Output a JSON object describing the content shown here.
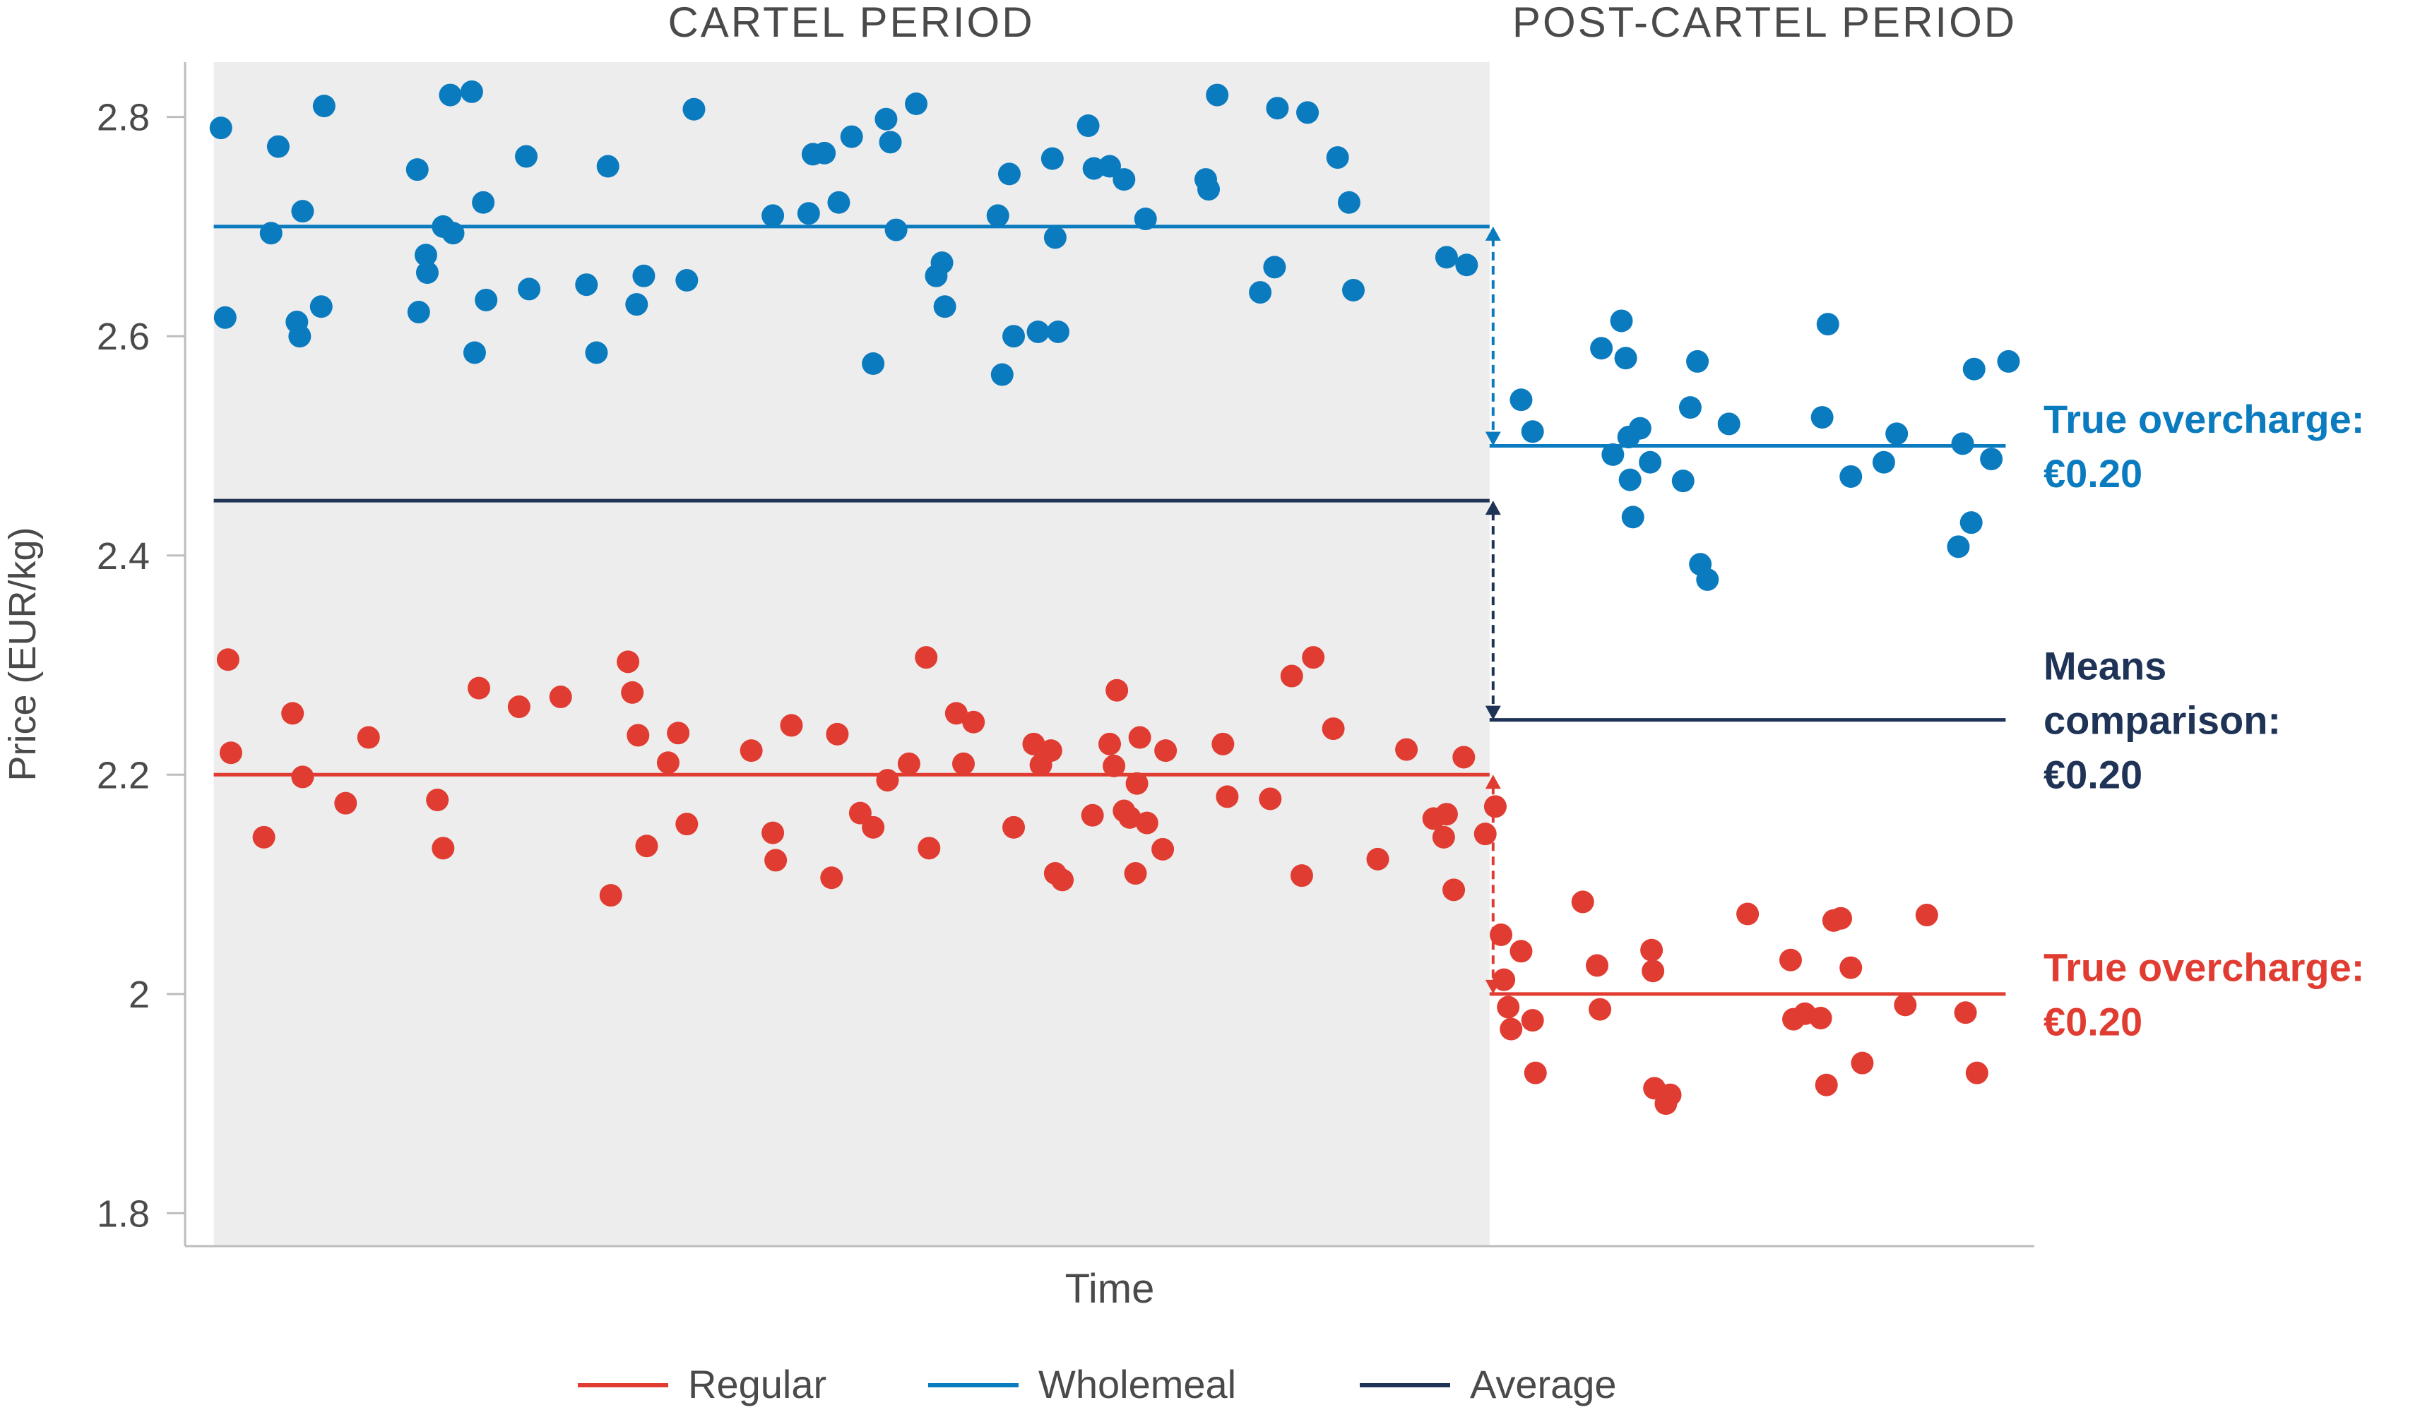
{
  "chart_data": {
    "type": "scatter",
    "title": "",
    "xlabel": "Time",
    "ylabel": "Price (EUR/kg)",
    "ylim": [
      1.77,
      2.85
    ],
    "xlim": [
      0,
      129
    ],
    "y_ticks": [
      1.8,
      2,
      2.2,
      2.4,
      2.6,
      2.8
    ],
    "y_tick_labels": [
      "1.8",
      "2",
      "2.2",
      "2.4",
      "2.6",
      "2.8"
    ],
    "grid": false,
    "legend_position": "bottom",
    "periods": [
      {
        "label": "CARTEL PERIOD",
        "x_start": 2,
        "x_end": 91,
        "shaded": true
      },
      {
        "label": "POST-CARTEL PERIOD",
        "x_start": 91,
        "x_end": 129,
        "shaded": false
      }
    ],
    "colors": {
      "regular": "#E03C31",
      "wholemeal": "#0B7BBF",
      "average": "#1F3356",
      "shade": "#EDEDED",
      "axis": "#BDBDBD",
      "text": "#4A4A4A"
    },
    "series": [
      {
        "name": "Wholemeal",
        "color": "#0B7BBF",
        "points": [
          [
            2.5,
            2.79
          ],
          [
            2.8,
            2.617
          ],
          [
            6,
            2.694
          ],
          [
            6.5,
            2.773
          ],
          [
            7.8,
            2.613
          ],
          [
            8,
            2.6
          ],
          [
            8.2,
            2.714
          ],
          [
            9.5,
            2.627
          ],
          [
            9.7,
            2.81
          ],
          [
            16.2,
            2.752
          ],
          [
            16.3,
            2.622
          ],
          [
            16.8,
            2.674
          ],
          [
            16.9,
            2.658
          ],
          [
            18,
            2.7
          ],
          [
            18.5,
            2.82
          ],
          [
            18.7,
            2.694
          ],
          [
            20,
            2.823
          ],
          [
            20.2,
            2.585
          ],
          [
            20.8,
            2.722
          ],
          [
            21,
            2.633
          ],
          [
            23.8,
            2.764
          ],
          [
            24,
            2.643
          ],
          [
            28,
            2.647
          ],
          [
            28.7,
            2.585
          ],
          [
            29.5,
            2.755
          ],
          [
            31.5,
            2.629
          ],
          [
            32,
            2.655
          ],
          [
            35,
            2.651
          ],
          [
            35.5,
            2.807
          ],
          [
            41,
            2.71
          ],
          [
            43.5,
            2.712
          ],
          [
            43.8,
            2.766
          ],
          [
            44.6,
            2.767
          ],
          [
            45.6,
            2.722
          ],
          [
            46.5,
            2.782
          ],
          [
            48,
            2.575
          ],
          [
            48.9,
            2.798
          ],
          [
            49.2,
            2.777
          ],
          [
            49.6,
            2.697
          ],
          [
            51,
            2.812
          ],
          [
            52.4,
            2.655
          ],
          [
            52.8,
            2.667
          ],
          [
            53,
            2.627
          ],
          [
            56.7,
            2.71
          ],
          [
            57,
            2.565
          ],
          [
            57.5,
            2.748
          ],
          [
            57.8,
            2.6
          ],
          [
            59.5,
            2.604
          ],
          [
            60.5,
            2.762
          ],
          [
            60.7,
            2.69
          ],
          [
            60.9,
            2.604
          ],
          [
            63,
            2.792
          ],
          [
            63.4,
            2.753
          ],
          [
            64.5,
            2.755
          ],
          [
            65.5,
            2.743
          ],
          [
            67,
            2.707
          ],
          [
            71.2,
            2.743
          ],
          [
            71.4,
            2.734
          ],
          [
            72,
            2.82
          ],
          [
            75,
            2.64
          ],
          [
            76,
            2.663
          ],
          [
            76.2,
            2.808
          ],
          [
            78.3,
            2.804
          ],
          [
            80.4,
            2.763
          ],
          [
            81.2,
            2.722
          ],
          [
            81.5,
            2.642
          ],
          [
            88,
            2.672
          ],
          [
            89.4,
            2.665
          ],
          [
            93.2,
            2.542
          ],
          [
            94,
            2.513
          ],
          [
            98.8,
            2.589
          ],
          [
            99.6,
            2.492
          ],
          [
            100.2,
            2.614
          ],
          [
            100.5,
            2.58
          ],
          [
            100.7,
            2.508
          ],
          [
            100.8,
            2.469
          ],
          [
            101,
            2.435
          ],
          [
            101.5,
            2.516
          ],
          [
            102.2,
            2.485
          ],
          [
            104.5,
            2.468
          ],
          [
            105,
            2.535
          ],
          [
            105.5,
            2.577
          ],
          [
            105.7,
            2.392
          ],
          [
            106.2,
            2.378
          ],
          [
            107.7,
            2.52
          ],
          [
            114.2,
            2.526
          ],
          [
            114.6,
            2.611
          ],
          [
            116.2,
            2.472
          ],
          [
            118.5,
            2.485
          ],
          [
            119.4,
            2.511
          ],
          [
            123.7,
            2.408
          ],
          [
            124,
            2.502
          ],
          [
            124.6,
            2.43
          ],
          [
            124.8,
            2.57
          ],
          [
            126,
            2.488
          ],
          [
            127.2,
            2.577
          ]
        ]
      },
      {
        "name": "Regular",
        "color": "#E03C31",
        "points": [
          [
            3,
            2.305
          ],
          [
            3.2,
            2.22
          ],
          [
            5.5,
            2.143
          ],
          [
            7.5,
            2.256
          ],
          [
            8.2,
            2.198
          ],
          [
            11.2,
            2.174
          ],
          [
            12.8,
            2.234
          ],
          [
            17.6,
            2.177
          ],
          [
            18,
            2.133
          ],
          [
            20.5,
            2.279
          ],
          [
            23.3,
            2.262
          ],
          [
            26.2,
            2.271
          ],
          [
            29.7,
            2.09
          ],
          [
            30.9,
            2.303
          ],
          [
            31.2,
            2.275
          ],
          [
            31.6,
            2.236
          ],
          [
            32.2,
            2.135
          ],
          [
            33.7,
            2.211
          ],
          [
            34.4,
            2.238
          ],
          [
            35,
            2.155
          ],
          [
            39.5,
            2.222
          ],
          [
            41,
            2.147
          ],
          [
            41.2,
            2.122
          ],
          [
            42.3,
            2.245
          ],
          [
            45.1,
            2.106
          ],
          [
            45.5,
            2.237
          ],
          [
            47.1,
            2.165
          ],
          [
            48,
            2.152
          ],
          [
            49,
            2.195
          ],
          [
            50.5,
            2.21
          ],
          [
            51.7,
            2.307
          ],
          [
            51.9,
            2.133
          ],
          [
            53.8,
            2.256
          ],
          [
            54.3,
            2.21
          ],
          [
            55,
            2.248
          ],
          [
            57.8,
            2.152
          ],
          [
            59.2,
            2.228
          ],
          [
            59.7,
            2.209
          ],
          [
            60.4,
            2.222
          ],
          [
            60.7,
            2.11
          ],
          [
            61.2,
            2.104
          ],
          [
            63.3,
            2.163
          ],
          [
            64.5,
            2.228
          ],
          [
            64.8,
            2.208
          ],
          [
            65,
            2.277
          ],
          [
            65.5,
            2.167
          ],
          [
            65.9,
            2.161
          ],
          [
            66.3,
            2.11
          ],
          [
            66.4,
            2.192
          ],
          [
            66.6,
            2.234
          ],
          [
            67.1,
            2.156
          ],
          [
            68.2,
            2.132
          ],
          [
            68.4,
            2.222
          ],
          [
            72.4,
            2.228
          ],
          [
            72.7,
            2.18
          ],
          [
            75.7,
            2.178
          ],
          [
            77.2,
            2.29
          ],
          [
            77.9,
            2.108
          ],
          [
            78.7,
            2.307
          ],
          [
            80.1,
            2.242
          ],
          [
            83.2,
            2.123
          ],
          [
            85.2,
            2.223
          ],
          [
            87.1,
            2.16
          ],
          [
            87.8,
            2.143
          ],
          [
            88,
            2.164
          ],
          [
            88.5,
            2.095
          ],
          [
            89.2,
            2.216
          ],
          [
            90.7,
            2.146
          ],
          [
            91.4,
            2.171
          ],
          [
            91.8,
            2.054
          ],
          [
            92,
            2.013
          ],
          [
            92.3,
            1.988
          ],
          [
            92.5,
            1.968
          ],
          [
            93.2,
            2.039
          ],
          [
            94,
            1.976
          ],
          [
            94.2,
            1.928
          ],
          [
            97.5,
            2.084
          ],
          [
            98.5,
            2.026
          ],
          [
            98.7,
            1.986
          ],
          [
            102.3,
            2.04
          ],
          [
            102.4,
            2.021
          ],
          [
            102.5,
            1.914
          ],
          [
            103.3,
            1.9
          ],
          [
            103.6,
            1.908
          ],
          [
            109,
            2.073
          ],
          [
            112,
            2.031
          ],
          [
            112.2,
            1.977
          ],
          [
            113,
            1.982
          ],
          [
            114.1,
            1.978
          ],
          [
            114.5,
            1.917
          ],
          [
            115,
            2.067
          ],
          [
            115.5,
            2.069
          ],
          [
            116.2,
            2.024
          ],
          [
            117,
            1.937
          ],
          [
            120,
            1.99
          ],
          [
            121.5,
            2.072
          ],
          [
            124.2,
            1.983
          ],
          [
            125,
            1.928
          ]
        ]
      }
    ],
    "mean_lines": [
      {
        "name": "Wholemeal",
        "segments": [
          {
            "x0": 2,
            "x1": 91,
            "y": 2.7
          },
          {
            "x0": 91,
            "x1": 127,
            "y": 2.5
          }
        ]
      },
      {
        "name": "Regular",
        "segments": [
          {
            "x0": 2,
            "x1": 91,
            "y": 2.2
          },
          {
            "x0": 91,
            "x1": 127,
            "y": 2.0
          }
        ]
      },
      {
        "name": "Average",
        "segments": [
          {
            "x0": 2,
            "x1": 91,
            "y": 2.45
          },
          {
            "x0": 91,
            "x1": 127,
            "y": 2.25
          }
        ]
      }
    ],
    "arrows": [
      {
        "series": "Wholemeal",
        "x": 91,
        "y0": 2.7,
        "y1": 2.5,
        "style": "dashed"
      },
      {
        "series": "Average",
        "x": 91,
        "y0": 2.45,
        "y1": 2.25,
        "style": "dashed"
      },
      {
        "series": "Regular",
        "x": 91,
        "y0": 2.2,
        "y1": 2.0,
        "style": "dashed"
      }
    ],
    "annotations": [
      {
        "series": "Wholemeal",
        "y": 2.5,
        "lines": [
          "True overcharge:",
          "€0.20"
        ]
      },
      {
        "series": "Average",
        "y": 2.25,
        "lines": [
          "Means",
          "comparison:",
          "€0.20"
        ]
      },
      {
        "series": "Regular",
        "y": 2.0,
        "lines": [
          "True overcharge:",
          "€0.20"
        ]
      }
    ],
    "legend": [
      {
        "label": "Regular",
        "series": "Regular"
      },
      {
        "label": "Wholemeal",
        "series": "Wholemeal"
      },
      {
        "label": "Average",
        "series": "Average"
      }
    ]
  }
}
